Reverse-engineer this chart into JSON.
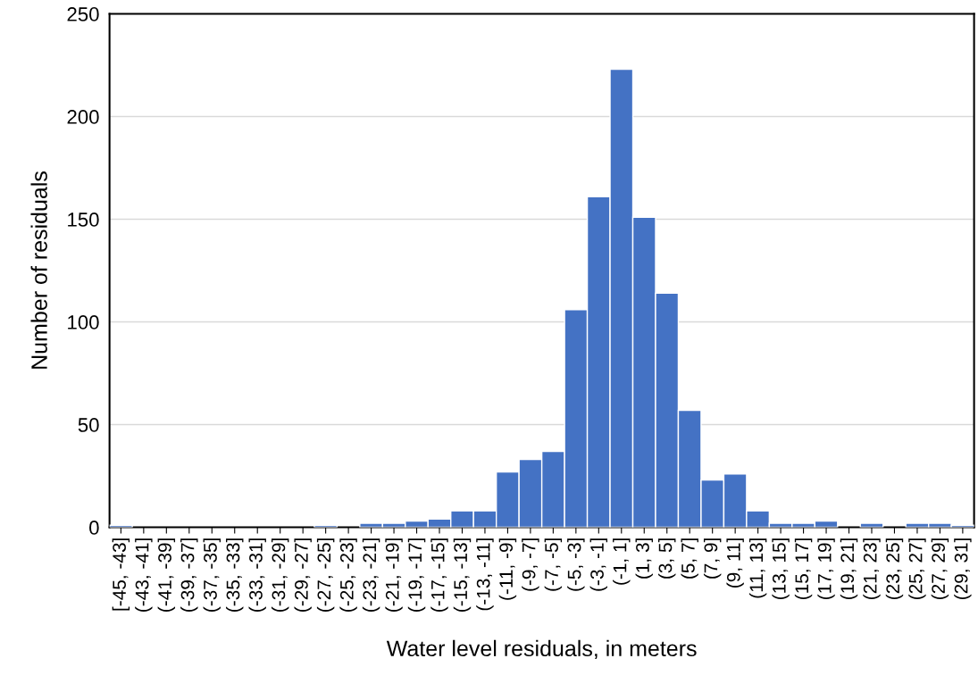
{
  "chart_data": {
    "type": "bar",
    "xlabel": "Water level residuals, in meters",
    "ylabel": "Number of residuals",
    "categories": [
      "[-45, -43]",
      "(-43, -41]",
      "(-41, -39]",
      "(-39, -37]",
      "(-37, -35]",
      "(-35, -33]",
      "(-33, -31]",
      "(-31, -29]",
      "(-29, -27]",
      "(-27, -25]",
      "(-25, -23]",
      "(-23, -21]",
      "(-21, -19]",
      "(-19, -17]",
      "(-17, -15]",
      "(-15, -13]",
      "(-13, -11]",
      "(-11, -9]",
      "(-9, -7]",
      "(-7, -5]",
      "(-5, -3]",
      "(-3, -1]",
      "(-1, 1]",
      "(1, 3]",
      "(3, 5]",
      "(5, 7]",
      "(7, 9]",
      "(9, 11]",
      "(11, 13]",
      "(13, 15]",
      "(15, 17]",
      "(17, 19]",
      "(19, 21]",
      "(21, 23]",
      "(23, 25]",
      "(25, 27]",
      "(27, 29]",
      "(29, 31]"
    ],
    "values": [
      1,
      0,
      0,
      0,
      0,
      0,
      0,
      0,
      0,
      1,
      0,
      2,
      2,
      3,
      4,
      8,
      8,
      27,
      33,
      37,
      106,
      161,
      223,
      151,
      114,
      57,
      23,
      26,
      8,
      2,
      2,
      3,
      0,
      2,
      0,
      2,
      2,
      1
    ],
    "color": "#4472c4",
    "ylim": [
      0,
      250
    ],
    "yticks": [
      0,
      50,
      100,
      150,
      200,
      250
    ],
    "grid": "y",
    "legend": false
  }
}
